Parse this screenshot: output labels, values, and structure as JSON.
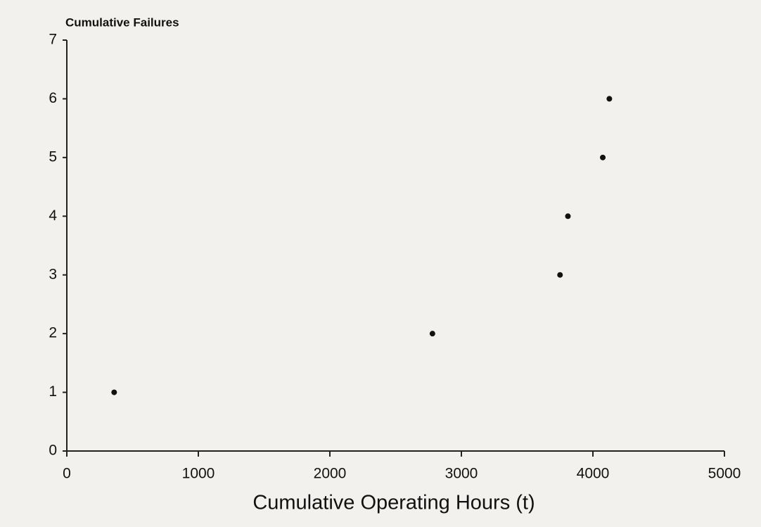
{
  "chart_data": {
    "type": "scatter",
    "ylabel": "Cumulative Failures",
    "xlabel": "Cumulative Operating Hours (t)",
    "x": [
      360,
      2780,
      3750,
      3810,
      4075,
      4125
    ],
    "values": [
      1,
      2,
      3,
      4,
      5,
      6
    ],
    "color": "#111111",
    "xlim": [
      0,
      5000
    ],
    "xticks": [
      0,
      1000,
      2000,
      3000,
      4000,
      5000
    ],
    "ylim": [
      0,
      7
    ],
    "yticks": [
      0,
      1,
      2,
      3,
      4,
      5,
      6,
      7
    ],
    "grid": false
  }
}
